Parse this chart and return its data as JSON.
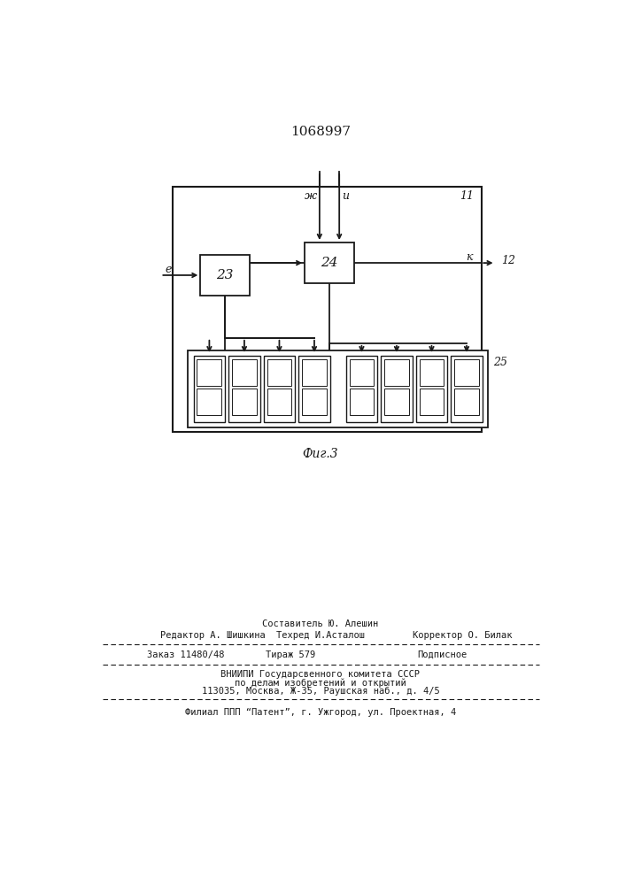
{
  "title": "1068997",
  "fig_label": "Фиг.3",
  "background_color": "#ffffff",
  "line_color": "#1a1a1a",
  "footer": {
    "line1_left": "Редактор А. Шишкина",
    "line1_center": "Составитель Ю. Алешин",
    "line2_center": "Техред И.Асталош",
    "line2_right": "Корректор О. Билак",
    "line3_left": "Заказ 11480/48",
    "line3_center": "Тираж 579",
    "line3_right": "Подписное",
    "line4": "ВНИИПИ Государсвенного комитета СССР",
    "line5": "по делам изобретений и открытий",
    "line6": "113035, Москва, Ж-35, Раушская наб., д. 4/5",
    "line7": "Филиал ППП “Патент”, г. Ужгород, ул. Проектная, 4"
  }
}
